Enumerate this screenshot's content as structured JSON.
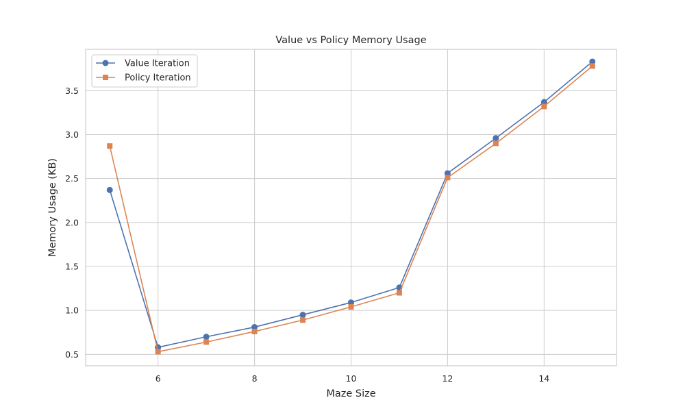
{
  "chart_data": {
    "type": "line",
    "title": "Value vs Policy Memory Usage",
    "xlabel": "Maze Size",
    "ylabel": "Memory Usage (KB)",
    "xlim": [
      4.5,
      15.5
    ],
    "ylim": [
      0.37,
      3.97
    ],
    "xticks": [
      6,
      8,
      10,
      12,
      14
    ],
    "yticks": [
      0.5,
      1.0,
      1.5,
      2.0,
      2.5,
      3.0,
      3.5
    ],
    "xtick_labels": [
      "6",
      "8",
      "10",
      "12",
      "14"
    ],
    "ytick_labels": [
      "0.5",
      "1.0",
      "1.5",
      "2.0",
      "2.5",
      "3.0",
      "3.5"
    ],
    "grid": true,
    "legend_position": "upper-left",
    "x": [
      5,
      6,
      7,
      8,
      9,
      10,
      11,
      12,
      13,
      14,
      15
    ],
    "series": [
      {
        "name": "Value Iteration",
        "color": "#4c72b0",
        "marker": "circle",
        "values": [
          2.37,
          0.58,
          0.7,
          0.81,
          0.95,
          1.09,
          1.26,
          2.56,
          2.96,
          3.37,
          3.83
        ]
      },
      {
        "name": "Policy Iteration",
        "color": "#dd8452",
        "marker": "square",
        "values": [
          2.87,
          0.53,
          0.64,
          0.76,
          0.89,
          1.04,
          1.2,
          2.51,
          2.9,
          3.32,
          3.78
        ]
      }
    ]
  }
}
